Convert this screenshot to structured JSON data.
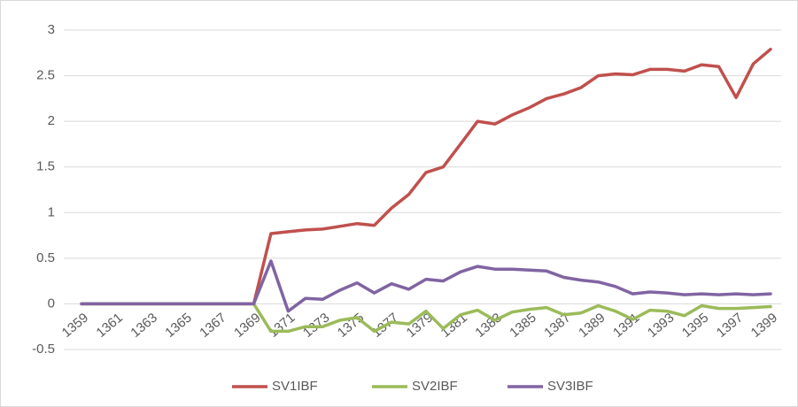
{
  "chart_data": {
    "type": "line",
    "categories": [
      "1359",
      null,
      "1361",
      null,
      "1363",
      null,
      "1365",
      null,
      "1367",
      null,
      "1369",
      null,
      "1371",
      null,
      "1373",
      null,
      "1375",
      null,
      "1377",
      null,
      "1379",
      null,
      "1381",
      null,
      "1383",
      null,
      "1385",
      null,
      "1387",
      null,
      "1389",
      null,
      "1391",
      null,
      "1393",
      null,
      "1395",
      null,
      "1397",
      null,
      "1399"
    ],
    "series": [
      {
        "name": "SV1IBF",
        "color": "#c0504d",
        "values": [
          0,
          0,
          0,
          0,
          0,
          0,
          0,
          0,
          0,
          0,
          0,
          0.77,
          0.79,
          0.81,
          0.82,
          0.85,
          0.88,
          0.86,
          1.05,
          1.2,
          1.44,
          1.5,
          1.75,
          2.0,
          1.97,
          2.07,
          2.15,
          2.25,
          2.3,
          2.37,
          2.5,
          2.52,
          2.51,
          2.57,
          2.57,
          2.55,
          2.62,
          2.6,
          2.26,
          2.63,
          2.79
        ]
      },
      {
        "name": "SV2IBF",
        "color": "#9bbb59",
        "values": [
          0,
          0,
          0,
          0,
          0,
          0,
          0,
          0,
          0,
          0,
          0,
          -0.3,
          -0.3,
          -0.25,
          -0.25,
          -0.18,
          -0.15,
          -0.3,
          -0.2,
          -0.22,
          -0.08,
          -0.27,
          -0.12,
          -0.07,
          -0.18,
          -0.09,
          -0.06,
          -0.04,
          -0.12,
          -0.1,
          -0.02,
          -0.08,
          -0.17,
          -0.07,
          -0.08,
          -0.13,
          -0.02,
          -0.05,
          -0.05,
          -0.04,
          -0.03
        ]
      },
      {
        "name": "SV3IBF",
        "color": "#8064a2",
        "values": [
          0,
          0,
          0,
          0,
          0,
          0,
          0,
          0,
          0,
          0,
          0,
          0.47,
          -0.08,
          0.06,
          0.05,
          0.15,
          0.23,
          0.12,
          0.22,
          0.16,
          0.27,
          0.25,
          0.35,
          0.41,
          0.38,
          0.38,
          0.37,
          0.36,
          0.29,
          0.26,
          0.24,
          0.19,
          0.11,
          0.13,
          0.12,
          0.1,
          0.11,
          0.1,
          0.11,
          0.1,
          0.11
        ]
      }
    ],
    "ylim": [
      -0.5,
      3
    ],
    "yticks": [
      -0.5,
      0,
      0.5,
      1,
      1.5,
      2,
      2.5,
      3
    ],
    "grid": true,
    "legend": "bottom"
  }
}
